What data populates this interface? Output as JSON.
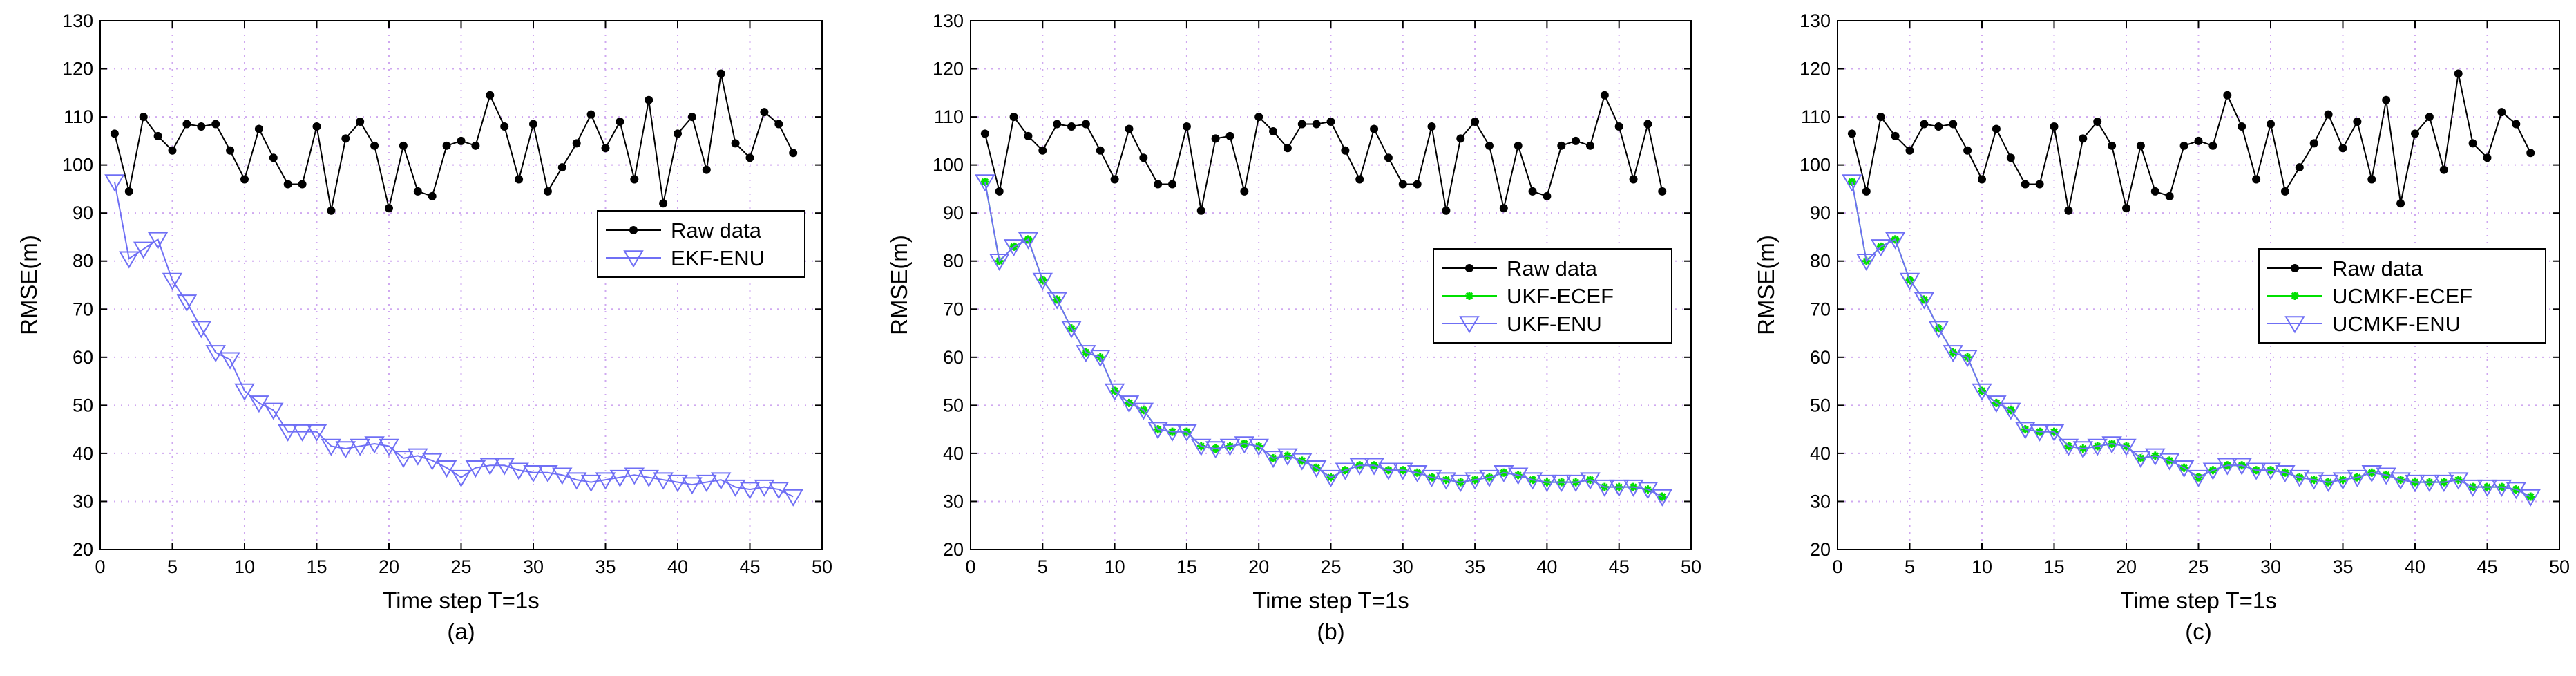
{
  "chart_data": [
    {
      "type": "line",
      "caption": "(a)",
      "xlabel": "Time step T=1s",
      "ylabel": "RMSE(m)",
      "xlim": [
        0,
        50
      ],
      "ylim": [
        20,
        130
      ],
      "xticks": [
        0,
        5,
        10,
        15,
        20,
        25,
        30,
        35,
        40,
        45,
        50
      ],
      "yticks": [
        20,
        30,
        40,
        50,
        60,
        70,
        80,
        90,
        100,
        110,
        120,
        130
      ],
      "grid": true,
      "legend_position": "center-right",
      "series": [
        {
          "name": "Raw data",
          "color": "#000000",
          "marker": "dot",
          "x": [
            1,
            2,
            3,
            4,
            5,
            6,
            7,
            8,
            9,
            10,
            11,
            12,
            13,
            14,
            15,
            16,
            17,
            18,
            19,
            20,
            21,
            22,
            23,
            24,
            25,
            26,
            27,
            28,
            29,
            30,
            31,
            32,
            33,
            34,
            35,
            36,
            37,
            38,
            39,
            40,
            41,
            42,
            43,
            44,
            45,
            46,
            47,
            48
          ],
          "values": [
            106.5,
            94.5,
            110,
            106,
            103,
            108.5,
            108,
            108.5,
            103,
            97,
            107.5,
            101.5,
            96,
            96,
            108,
            90.5,
            105.5,
            109,
            104,
            91,
            104,
            94.5,
            93.5,
            104,
            105,
            104,
            114.5,
            108,
            97,
            108.5,
            94.5,
            99.5,
            104.5,
            110.5,
            103.5,
            109,
            97,
            113.5,
            92,
            106.5,
            110,
            99,
            119,
            104.5,
            101.5,
            111,
            108.5,
            102.5
          ]
        },
        {
          "name": "EKF-ENU",
          "color": "#6f6ff5",
          "marker": "triangle-down",
          "x": [
            1,
            2,
            3,
            4,
            5,
            6,
            7,
            8,
            9,
            10,
            11,
            12,
            13,
            14,
            15,
            16,
            17,
            18,
            19,
            20,
            21,
            22,
            23,
            24,
            25,
            26,
            27,
            28,
            29,
            30,
            31,
            32,
            33,
            34,
            35,
            36,
            37,
            38,
            39,
            40,
            41,
            42,
            43,
            44,
            45,
            46,
            47,
            48
          ],
          "values": [
            96.5,
            80.5,
            82.5,
            84.5,
            76,
            71.5,
            66,
            61,
            59.5,
            53,
            50.5,
            49,
            44.5,
            44.5,
            44.5,
            41.5,
            41,
            41.5,
            42,
            41.5,
            39,
            39.5,
            38.5,
            37,
            35,
            37,
            37.5,
            37.5,
            36.5,
            36,
            36,
            35.5,
            34.5,
            34,
            34.5,
            35,
            35.5,
            35,
            34.5,
            34,
            33.5,
            34,
            34.5,
            33,
            32.5,
            33,
            32.5,
            31
          ]
        }
      ]
    },
    {
      "type": "line",
      "caption": "(b)",
      "xlabel": "Time step T=1s",
      "ylabel": "RMSE(m)",
      "xlim": [
        0,
        50
      ],
      "ylim": [
        20,
        130
      ],
      "xticks": [
        0,
        5,
        10,
        15,
        20,
        25,
        30,
        35,
        40,
        45,
        50
      ],
      "yticks": [
        20,
        30,
        40,
        50,
        60,
        70,
        80,
        90,
        100,
        110,
        120,
        130
      ],
      "grid": true,
      "legend_position": "center-right",
      "series": [
        {
          "name": "Raw data",
          "color": "#000000",
          "marker": "dot",
          "x": [
            1,
            2,
            3,
            4,
            5,
            6,
            7,
            8,
            9,
            10,
            11,
            12,
            13,
            14,
            15,
            16,
            17,
            18,
            19,
            20,
            21,
            22,
            23,
            24,
            25,
            26,
            27,
            28,
            29,
            30,
            31,
            32,
            33,
            34,
            35,
            36,
            37,
            38,
            39,
            40,
            41,
            42,
            43,
            44,
            45,
            46,
            47,
            48
          ],
          "values": [
            106.5,
            94.5,
            110,
            106,
            103,
            108.5,
            108,
            108.5,
            103,
            97,
            107.5,
            101.5,
            96,
            96,
            108,
            90.5,
            105.5,
            106,
            94.5,
            110,
            107,
            103.5,
            108.5,
            108.5,
            109,
            103,
            97,
            107.5,
            101.5,
            96,
            96,
            108,
            90.5,
            105.5,
            109,
            104,
            91,
            104,
            94.5,
            93.5,
            104,
            105,
            104,
            114.5,
            108,
            97,
            108.5,
            94.5
          ]
        },
        {
          "name": "UKF-ECEF",
          "color": "#00e000",
          "marker": "star",
          "x": [
            1,
            2,
            3,
            4,
            5,
            6,
            7,
            8,
            9,
            10,
            11,
            12,
            13,
            14,
            15,
            16,
            17,
            18,
            19,
            20,
            21,
            22,
            23,
            24,
            25,
            26,
            27,
            28,
            29,
            30,
            31,
            32,
            33,
            34,
            35,
            36,
            37,
            38,
            39,
            40,
            41,
            42,
            43,
            44,
            45,
            46,
            47,
            48
          ],
          "values": [
            96.5,
            80,
            83,
            84.5,
            76,
            72,
            66,
            61,
            60,
            53,
            50.5,
            49,
            45,
            44.5,
            44.5,
            41.5,
            41,
            41.5,
            42,
            41.5,
            39,
            39.5,
            38.5,
            37,
            35,
            36.5,
            37.5,
            37.5,
            36.5,
            36.5,
            36,
            35,
            34.5,
            34,
            34.5,
            35,
            36,
            35.5,
            34.5,
            34,
            34,
            34,
            34.5,
            33,
            33,
            33,
            32.5,
            31
          ]
        },
        {
          "name": "UKF-ENU",
          "color": "#6f6ff5",
          "marker": "triangle-down",
          "x": [
            1,
            2,
            3,
            4,
            5,
            6,
            7,
            8,
            9,
            10,
            11,
            12,
            13,
            14,
            15,
            16,
            17,
            18,
            19,
            20,
            21,
            22,
            23,
            24,
            25,
            26,
            27,
            28,
            29,
            30,
            31,
            32,
            33,
            34,
            35,
            36,
            37,
            38,
            39,
            40,
            41,
            42,
            43,
            44,
            45,
            46,
            47,
            48
          ],
          "values": [
            96.5,
            80,
            83,
            84.5,
            76,
            72,
            66,
            61,
            60,
            53,
            50.5,
            49,
            45,
            44.5,
            44.5,
            41.5,
            41,
            41.5,
            42,
            41.5,
            39,
            39.5,
            38.5,
            37,
            35,
            36.5,
            37.5,
            37.5,
            36.5,
            36.5,
            36,
            35,
            34.5,
            34,
            34.5,
            35,
            36,
            35.5,
            34.5,
            34,
            34,
            34,
            34.5,
            33,
            33,
            33,
            32.5,
            31
          ]
        }
      ]
    },
    {
      "type": "line",
      "caption": "(c)",
      "xlabel": "Time step T=1s",
      "ylabel": "RMSE(m)",
      "xlim": [
        0,
        50
      ],
      "ylim": [
        20,
        130
      ],
      "xticks": [
        0,
        5,
        10,
        15,
        20,
        25,
        30,
        35,
        40,
        45,
        50
      ],
      "yticks": [
        20,
        30,
        40,
        50,
        60,
        70,
        80,
        90,
        100,
        110,
        120,
        130
      ],
      "grid": true,
      "legend_position": "center-right",
      "series": [
        {
          "name": "Raw data",
          "color": "#000000",
          "marker": "dot",
          "x": [
            1,
            2,
            3,
            4,
            5,
            6,
            7,
            8,
            9,
            10,
            11,
            12,
            13,
            14,
            15,
            16,
            17,
            18,
            19,
            20,
            21,
            22,
            23,
            24,
            25,
            26,
            27,
            28,
            29,
            30,
            31,
            32,
            33,
            34,
            35,
            36,
            37,
            38,
            39,
            40,
            41,
            42,
            43,
            44,
            45,
            46,
            47,
            48
          ],
          "values": [
            106.5,
            94.5,
            110,
            106,
            103,
            108.5,
            108,
            108.5,
            103,
            97,
            107.5,
            101.5,
            96,
            96,
            108,
            90.5,
            105.5,
            109,
            104,
            91,
            104,
            94.5,
            93.5,
            104,
            105,
            104,
            114.5,
            108,
            97,
            108.5,
            94.5,
            99.5,
            104.5,
            110.5,
            103.5,
            109,
            97,
            113.5,
            92,
            106.5,
            110,
            99,
            119,
            104.5,
            101.5,
            111,
            108.5,
            102.5
          ]
        },
        {
          "name": "UCMKF-ECEF",
          "color": "#00e000",
          "marker": "star",
          "x": [
            1,
            2,
            3,
            4,
            5,
            6,
            7,
            8,
            9,
            10,
            11,
            12,
            13,
            14,
            15,
            16,
            17,
            18,
            19,
            20,
            21,
            22,
            23,
            24,
            25,
            26,
            27,
            28,
            29,
            30,
            31,
            32,
            33,
            34,
            35,
            36,
            37,
            38,
            39,
            40,
            41,
            42,
            43,
            44,
            45,
            46,
            47,
            48
          ],
          "values": [
            96.5,
            80,
            83,
            84.5,
            76,
            72,
            66,
            61,
            60,
            53,
            50.5,
            49,
            45,
            44.5,
            44.5,
            41.5,
            41,
            41.5,
            42,
            41.5,
            39,
            39.5,
            38.5,
            37,
            35,
            36.5,
            37.5,
            37.5,
            36.5,
            36.5,
            36,
            35,
            34.5,
            34,
            34.5,
            35,
            36,
            35.5,
            34.5,
            34,
            34,
            34,
            34.5,
            33,
            33,
            33,
            32.5,
            31
          ]
        },
        {
          "name": "UCMKF-ENU",
          "color": "#6f6ff5",
          "marker": "triangle-down",
          "x": [
            1,
            2,
            3,
            4,
            5,
            6,
            7,
            8,
            9,
            10,
            11,
            12,
            13,
            14,
            15,
            16,
            17,
            18,
            19,
            20,
            21,
            22,
            23,
            24,
            25,
            26,
            27,
            28,
            29,
            30,
            31,
            32,
            33,
            34,
            35,
            36,
            37,
            38,
            39,
            40,
            41,
            42,
            43,
            44,
            45,
            46,
            47,
            48
          ],
          "values": [
            96.5,
            80,
            83,
            84.5,
            76,
            72,
            66,
            61,
            60,
            53,
            50.5,
            49,
            45,
            44.5,
            44.5,
            41.5,
            41,
            41.5,
            42,
            41.5,
            39,
            39.5,
            38.5,
            37,
            35,
            36.5,
            37.5,
            37.5,
            36.5,
            36.5,
            36,
            35,
            34.5,
            34,
            34.5,
            35,
            36,
            35.5,
            34.5,
            34,
            34,
            34,
            34.5,
            33,
            33,
            33,
            32.5,
            31
          ]
        }
      ]
    }
  ]
}
